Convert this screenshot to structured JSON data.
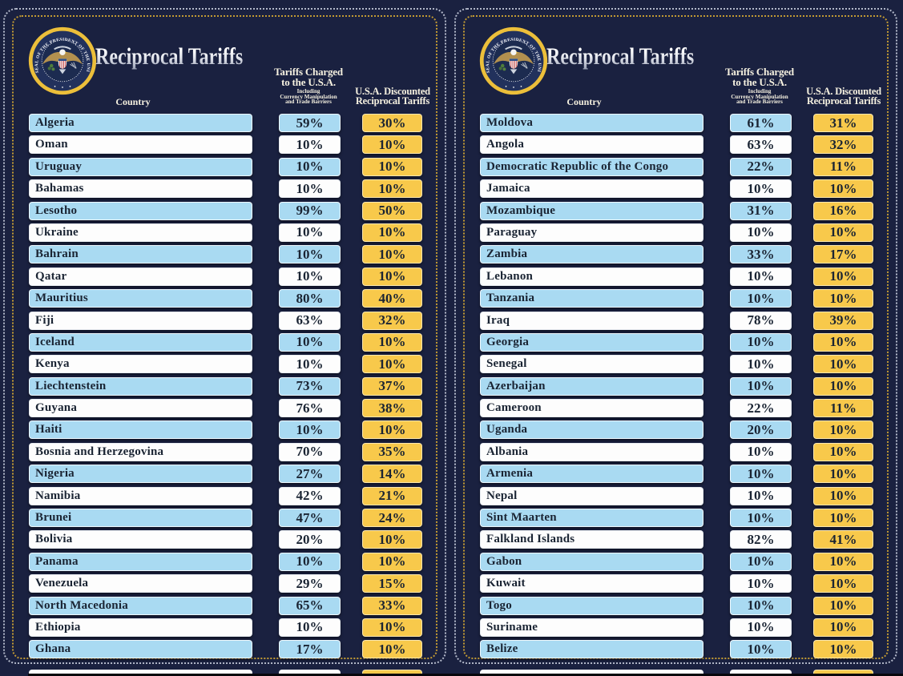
{
  "poster": {
    "title": "Reciprocal Tariffs",
    "seal_text": "SEAL OF THE PRESIDENT OF THE UNITED STATES",
    "columns": {
      "country_label": "Country",
      "charged_label_lines": [
        "Tariffs Charged",
        "to the U.S.A."
      ],
      "charged_sub_lines": [
        "Including",
        "Currency Manipulation",
        "and Trade Barriers"
      ],
      "discounted_label_lines": [
        "U.S.A. Discounted",
        "Reciprocal Tariffs"
      ]
    }
  },
  "colors": {
    "background": "#1a2140",
    "row_blue": "#a9daf2",
    "row_white": "#fdfdfd",
    "cell_yellow": "#f8c94b",
    "border_gold": "#c29a33",
    "border_white": "#d9deec",
    "text_dark": "#1a2433",
    "header_text": "#f6f1e0"
  },
  "panels": [
    {
      "rows": [
        {
          "country": "Algeria",
          "charged": "59%",
          "discounted": "30%"
        },
        {
          "country": "Oman",
          "charged": "10%",
          "discounted": "10%"
        },
        {
          "country": "Uruguay",
          "charged": "10%",
          "discounted": "10%"
        },
        {
          "country": "Bahamas",
          "charged": "10%",
          "discounted": "10%"
        },
        {
          "country": "Lesotho",
          "charged": "99%",
          "discounted": "50%"
        },
        {
          "country": "Ukraine",
          "charged": "10%",
          "discounted": "10%"
        },
        {
          "country": "Bahrain",
          "charged": "10%",
          "discounted": "10%"
        },
        {
          "country": "Qatar",
          "charged": "10%",
          "discounted": "10%"
        },
        {
          "country": "Mauritius",
          "charged": "80%",
          "discounted": "40%"
        },
        {
          "country": "Fiji",
          "charged": "63%",
          "discounted": "32%"
        },
        {
          "country": "Iceland",
          "charged": "10%",
          "discounted": "10%"
        },
        {
          "country": "Kenya",
          "charged": "10%",
          "discounted": "10%"
        },
        {
          "country": "Liechtenstein",
          "charged": "73%",
          "discounted": "37%"
        },
        {
          "country": "Guyana",
          "charged": "76%",
          "discounted": "38%"
        },
        {
          "country": "Haiti",
          "charged": "10%",
          "discounted": "10%"
        },
        {
          "country": "Bosnia and Herzegovina",
          "charged": "70%",
          "discounted": "35%"
        },
        {
          "country": "Nigeria",
          "charged": "27%",
          "discounted": "14%"
        },
        {
          "country": "Namibia",
          "charged": "42%",
          "discounted": "21%"
        },
        {
          "country": "Brunei",
          "charged": "47%",
          "discounted": "24%"
        },
        {
          "country": "Bolivia",
          "charged": "20%",
          "discounted": "10%"
        },
        {
          "country": "Panama",
          "charged": "10%",
          "discounted": "10%"
        },
        {
          "country": "Venezuela",
          "charged": "29%",
          "discounted": "15%"
        },
        {
          "country": "North Macedonia",
          "charged": "65%",
          "discounted": "33%"
        },
        {
          "country": "Ethiopia",
          "charged": "10%",
          "discounted": "10%"
        },
        {
          "country": "Ghana",
          "charged": "17%",
          "discounted": "10%"
        }
      ]
    },
    {
      "rows": [
        {
          "country": "Moldova",
          "charged": "61%",
          "discounted": "31%"
        },
        {
          "country": "Angola",
          "charged": "63%",
          "discounted": "32%"
        },
        {
          "country": "Democratic Republic of the Congo",
          "charged": "22%",
          "discounted": "11%"
        },
        {
          "country": "Jamaica",
          "charged": "10%",
          "discounted": "10%"
        },
        {
          "country": "Mozambique",
          "charged": "31%",
          "discounted": "16%"
        },
        {
          "country": "Paraguay",
          "charged": "10%",
          "discounted": "10%"
        },
        {
          "country": "Zambia",
          "charged": "33%",
          "discounted": "17%"
        },
        {
          "country": "Lebanon",
          "charged": "10%",
          "discounted": "10%"
        },
        {
          "country": "Tanzania",
          "charged": "10%",
          "discounted": "10%"
        },
        {
          "country": "Iraq",
          "charged": "78%",
          "discounted": "39%"
        },
        {
          "country": "Georgia",
          "charged": "10%",
          "discounted": "10%"
        },
        {
          "country": "Senegal",
          "charged": "10%",
          "discounted": "10%"
        },
        {
          "country": "Azerbaijan",
          "charged": "10%",
          "discounted": "10%"
        },
        {
          "country": "Cameroon",
          "charged": "22%",
          "discounted": "11%"
        },
        {
          "country": "Uganda",
          "charged": "20%",
          "discounted": "10%"
        },
        {
          "country": "Albania",
          "charged": "10%",
          "discounted": "10%"
        },
        {
          "country": "Armenia",
          "charged": "10%",
          "discounted": "10%"
        },
        {
          "country": "Nepal",
          "charged": "10%",
          "discounted": "10%"
        },
        {
          "country": "Sint Maarten",
          "charged": "10%",
          "discounted": "10%"
        },
        {
          "country": "Falkland Islands",
          "charged": "82%",
          "discounted": "41%"
        },
        {
          "country": "Gabon",
          "charged": "10%",
          "discounted": "10%"
        },
        {
          "country": "Kuwait",
          "charged": "10%",
          "discounted": "10%"
        },
        {
          "country": "Togo",
          "charged": "10%",
          "discounted": "10%"
        },
        {
          "country": "Suriname",
          "charged": "10%",
          "discounted": "10%"
        },
        {
          "country": "Belize",
          "charged": "10%",
          "discounted": "10%"
        }
      ]
    }
  ],
  "chart_data": [
    {
      "type": "table",
      "title": "Reciprocal Tariffs",
      "columns": [
        "Country",
        "Tariffs Charged to the U.S.A. Including Currency Manipulation and Trade Barriers",
        "U.S.A. Discounted Reciprocal Tariffs"
      ],
      "units": "percent",
      "rows": [
        [
          "Algeria",
          59,
          30
        ],
        [
          "Oman",
          10,
          10
        ],
        [
          "Uruguay",
          10,
          10
        ],
        [
          "Bahamas",
          10,
          10
        ],
        [
          "Lesotho",
          99,
          50
        ],
        [
          "Ukraine",
          10,
          10
        ],
        [
          "Bahrain",
          10,
          10
        ],
        [
          "Qatar",
          10,
          10
        ],
        [
          "Mauritius",
          80,
          40
        ],
        [
          "Fiji",
          63,
          32
        ],
        [
          "Iceland",
          10,
          10
        ],
        [
          "Kenya",
          10,
          10
        ],
        [
          "Liechtenstein",
          73,
          37
        ],
        [
          "Guyana",
          76,
          38
        ],
        [
          "Haiti",
          10,
          10
        ],
        [
          "Bosnia and Herzegovina",
          70,
          35
        ],
        [
          "Nigeria",
          27,
          14
        ],
        [
          "Namibia",
          42,
          21
        ],
        [
          "Brunei",
          47,
          24
        ],
        [
          "Bolivia",
          20,
          10
        ],
        [
          "Panama",
          10,
          10
        ],
        [
          "Venezuela",
          29,
          15
        ],
        [
          "North Macedonia",
          65,
          33
        ],
        [
          "Ethiopia",
          10,
          10
        ],
        [
          "Ghana",
          17,
          10
        ]
      ]
    },
    {
      "type": "table",
      "title": "Reciprocal Tariffs",
      "columns": [
        "Country",
        "Tariffs Charged to the U.S.A. Including Currency Manipulation and Trade Barriers",
        "U.S.A. Discounted Reciprocal Tariffs"
      ],
      "units": "percent",
      "rows": [
        [
          "Moldova",
          61,
          31
        ],
        [
          "Angola",
          63,
          32
        ],
        [
          "Democratic Republic of the Congo",
          22,
          11
        ],
        [
          "Jamaica",
          10,
          10
        ],
        [
          "Mozambique",
          31,
          16
        ],
        [
          "Paraguay",
          10,
          10
        ],
        [
          "Zambia",
          33,
          17
        ],
        [
          "Lebanon",
          10,
          10
        ],
        [
          "Tanzania",
          10,
          10
        ],
        [
          "Iraq",
          78,
          39
        ],
        [
          "Georgia",
          10,
          10
        ],
        [
          "Senegal",
          10,
          10
        ],
        [
          "Azerbaijan",
          10,
          10
        ],
        [
          "Cameroon",
          22,
          11
        ],
        [
          "Uganda",
          20,
          10
        ],
        [
          "Albania",
          10,
          10
        ],
        [
          "Armenia",
          10,
          10
        ],
        [
          "Nepal",
          10,
          10
        ],
        [
          "Sint Maarten",
          10,
          10
        ],
        [
          "Falkland Islands",
          82,
          41
        ],
        [
          "Gabon",
          10,
          10
        ],
        [
          "Kuwait",
          10,
          10
        ],
        [
          "Togo",
          10,
          10
        ],
        [
          "Suriname",
          10,
          10
        ],
        [
          "Belize",
          10,
          10
        ]
      ]
    }
  ]
}
